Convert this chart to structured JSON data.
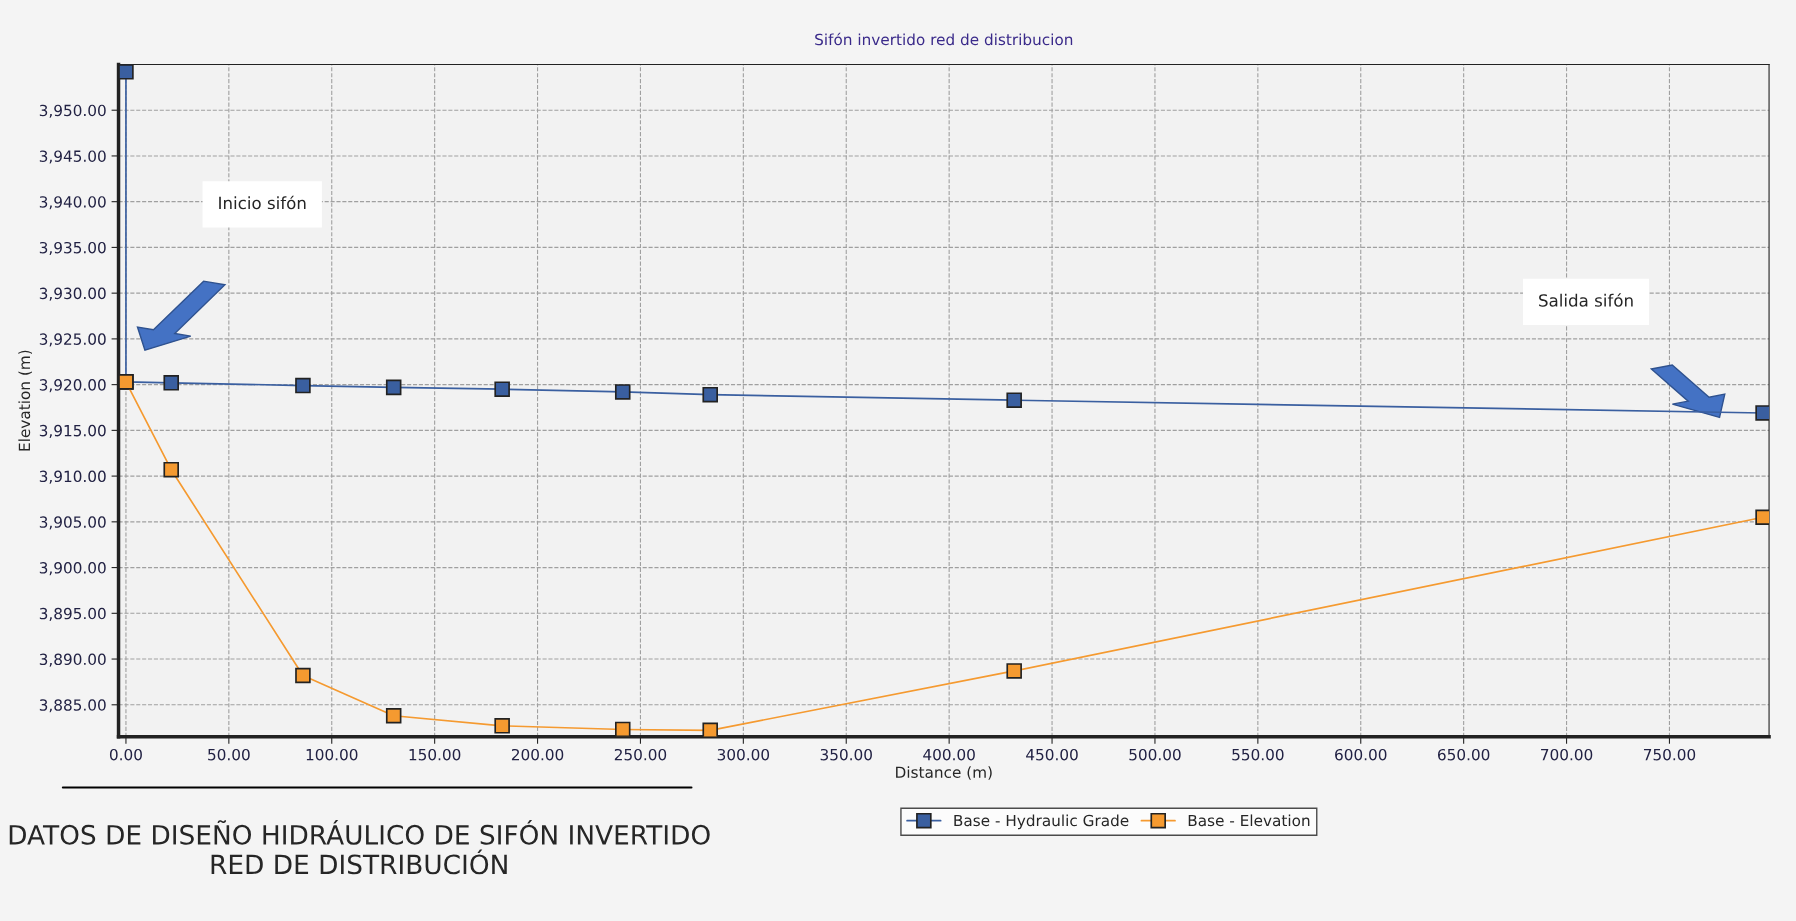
{
  "chart_data": {
    "type": "line",
    "title": "Sifón invertido red de distribucion",
    "xlabel": "Distance (m)",
    "ylabel": "Elevation (m)",
    "series": [
      {
        "name": "Base - Hydraulic Grade",
        "color": "#3a5fa0",
        "x": [
          0,
          0,
          22.0,
          86.0,
          130.1,
          182.8,
          241.4,
          283.9,
          431.6,
          795.5
        ],
        "values": [
          3954.2,
          3920.3,
          3920.2,
          3919.9,
          3919.7,
          3919.5,
          3919.2,
          3918.9,
          3918.3,
          3916.9
        ]
      },
      {
        "name": "Base - Elevation",
        "color": "#f59a30",
        "x": [
          0,
          22.0,
          86.0,
          130.1,
          182.8,
          241.4,
          283.9,
          431.6,
          795.5
        ],
        "values": [
          3920.3,
          3910.7,
          3888.2,
          3883.8,
          3882.7,
          3882.3,
          3882.2,
          3888.7,
          3905.5
        ]
      }
    ],
    "xlim": [
      -3.6,
      798.4
    ],
    "ylim": [
      3881.5,
      3955
    ],
    "xticks": [
      {
        "value": 0,
        "label": "0.00"
      },
      {
        "value": 50,
        "label": "50.00"
      },
      {
        "value": 100,
        "label": "100.00"
      },
      {
        "value": 150,
        "label": "150.00"
      },
      {
        "value": 200,
        "label": "200.00"
      },
      {
        "value": 250,
        "label": "250.00"
      },
      {
        "value": 300,
        "label": "300.00"
      },
      {
        "value": 350,
        "label": "350.00"
      },
      {
        "value": 400,
        "label": "400.00"
      },
      {
        "value": 450,
        "label": "450.00"
      },
      {
        "value": 500,
        "label": "500.00"
      },
      {
        "value": 550,
        "label": "550.00"
      },
      {
        "value": 600,
        "label": "600.00"
      },
      {
        "value": 650,
        "label": "650.00"
      },
      {
        "value": 700,
        "label": "700.00"
      },
      {
        "value": 750,
        "label": "750.00"
      }
    ],
    "yticks": [
      {
        "value": 3885,
        "label": "3,885.00"
      },
      {
        "value": 3890,
        "label": "3,890.00"
      },
      {
        "value": 3895,
        "label": "3,895.00"
      },
      {
        "value": 3900,
        "label": "3,900.00"
      },
      {
        "value": 3905,
        "label": "3,905.00"
      },
      {
        "value": 3910,
        "label": "3,910.00"
      },
      {
        "value": 3915,
        "label": "3,915.00"
      },
      {
        "value": 3920,
        "label": "3,920.00"
      },
      {
        "value": 3925,
        "label": "3,925.00"
      },
      {
        "value": 3930,
        "label": "3,930.00"
      },
      {
        "value": 3935,
        "label": "3,935.00"
      },
      {
        "value": 3940,
        "label": "3,940.00"
      },
      {
        "value": 3945,
        "label": "3,945.00"
      },
      {
        "value": 3950,
        "label": "3,950.00"
      }
    ],
    "grid": true,
    "legend": "bottom",
    "marker": "square",
    "line_style": "solid",
    "annotations": [
      "Inicio sifón",
      "Salida sifón",
      "DATOS DE DISEÑO HIDRÁULICO DE SIFÓN INVERTIDO RED DE DISTRIBUCIÓN"
    ]
  }
}
